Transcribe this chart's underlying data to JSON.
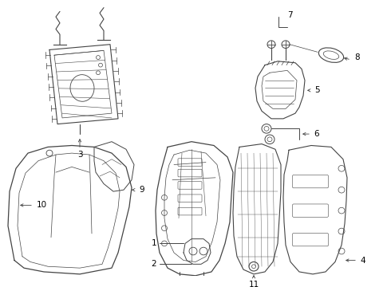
{
  "background_color": "#ffffff",
  "line_color": "#444444",
  "text_color": "#000000",
  "fig_width": 4.9,
  "fig_height": 3.6,
  "dpi": 100
}
